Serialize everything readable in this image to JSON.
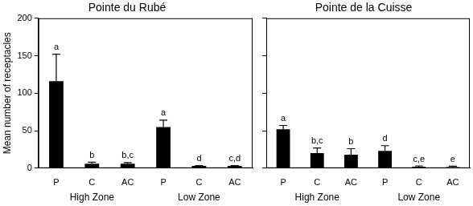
{
  "chart_data": [
    {
      "type": "bar",
      "title": "Pointe du Rubé",
      "y_label": "Mean number of receptacles",
      "categories": [
        "P",
        "C",
        "AC",
        "P",
        "C",
        "AC"
      ],
      "x_groups": [
        "High Zone",
        "Low Zone"
      ],
      "values": [
        116,
        6,
        6,
        55,
        3,
        3
      ],
      "errors": [
        36,
        2,
        1.5,
        9,
        0.5,
        0.5
      ],
      "annotations": [
        "a",
        "b",
        "b,c",
        "a",
        "d",
        "c,d"
      ],
      "color": "#000000",
      "ylim": [
        0,
        200
      ],
      "yticks": [
        0,
        50,
        100,
        150,
        200
      ],
      "grid": false
    },
    {
      "type": "bar",
      "title": "Pointe de la Cuisse",
      "categories": [
        "P",
        "C",
        "AC",
        "P",
        "C",
        "AC"
      ],
      "x_groups": [
        "High Zone",
        "Low Zone"
      ],
      "values": [
        52,
        20,
        18,
        23,
        2,
        1.5
      ],
      "errors": [
        5,
        7,
        8,
        7,
        1,
        1
      ],
      "annotations": [
        "a",
        "b,c",
        "b",
        "d",
        "c,e",
        "e"
      ],
      "color": "#000000",
      "ylim": [
        0,
        200
      ],
      "yticks": [
        0,
        50,
        100,
        150,
        200
      ],
      "grid": false,
      "tick_labels": "x"
    }
  ]
}
